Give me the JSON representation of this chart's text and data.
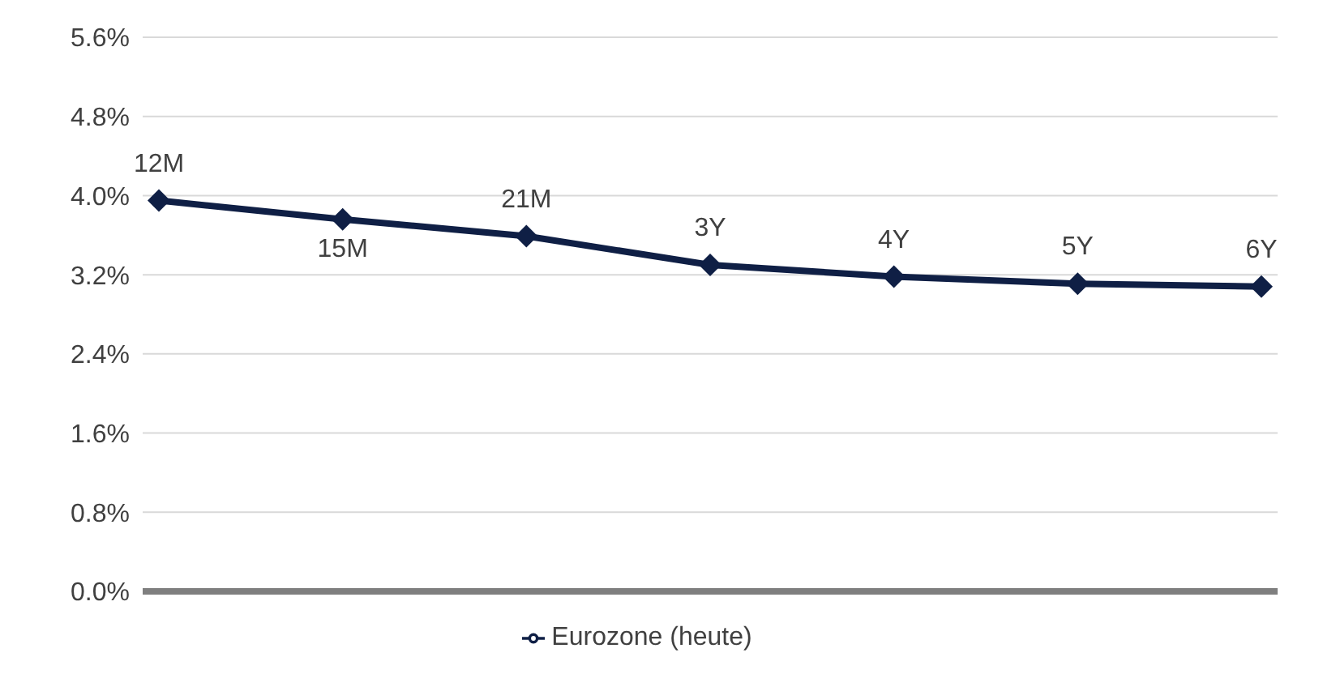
{
  "chart_data": {
    "type": "line",
    "categories": [
      null,
      null,
      null,
      null,
      null,
      null,
      null
    ],
    "series": [
      {
        "name": "Eurozone (heute)",
        "color": "#0f1f45",
        "values": [
          3.95,
          3.76,
          3.59,
          3.3,
          3.18,
          3.11,
          3.08
        ]
      }
    ],
    "ylim": [
      0,
      5.6
    ],
    "yticks": [
      {
        "value": 0,
        "label": "0.0%"
      },
      {
        "value": 0.8,
        "label": "0.8%"
      },
      {
        "value": 1.6,
        "label": "1.6%"
      },
      {
        "value": 2.4,
        "label": "2.4%"
      },
      {
        "value": 3.2,
        "label": "3.2%"
      },
      {
        "value": 4.0,
        "label": "4.0%"
      },
      {
        "value": 4.8,
        "label": "4.8%"
      },
      {
        "value": 5.6,
        "label": "5.6%"
      }
    ],
    "tick_labels": "y",
    "grid": "y",
    "legend": "bottom",
    "marker": "diamond",
    "line_style": "solid",
    "annotations": [
      "12M",
      "15M",
      "21M",
      "3Y",
      "4Y",
      "5Y",
      "6Y"
    ]
  }
}
